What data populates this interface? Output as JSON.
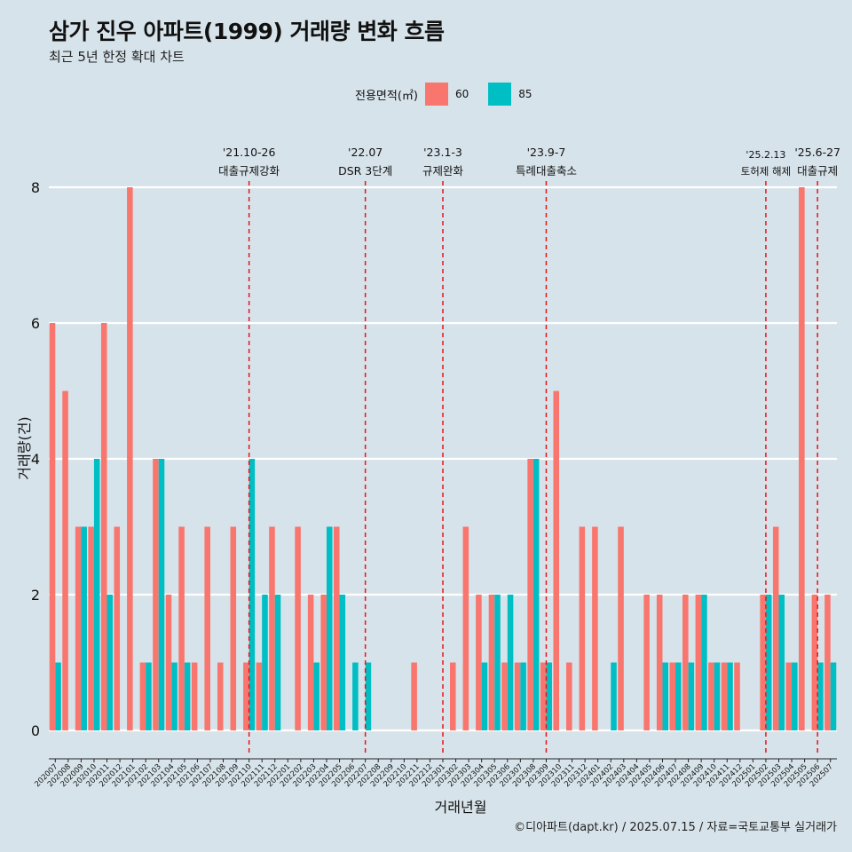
{
  "header": {
    "title": "삼가 진우 아파트(1999) 거래량 변화 흐름",
    "subtitle": "최근 5년 한정 확대 차트"
  },
  "legend": {
    "title": "전용면적(㎡)",
    "items": [
      {
        "label": "60",
        "color": "#F8766D"
      },
      {
        "label": "85",
        "color": "#00BFC4"
      }
    ]
  },
  "caption": "©디아파트(dapt.kr) / 2025.07.15 / 자료=국토교통부 실거래가",
  "chart_data": {
    "type": "bar",
    "title": "삼가 진우 아파트(1999) 거래량 변화 흐름",
    "xlabel": "거래년월",
    "ylabel": "거래량(건)",
    "ylim": [
      0,
      8
    ],
    "yticks": [
      0,
      2,
      4,
      6,
      8
    ],
    "grid": true,
    "legend_position": "top",
    "categories": [
      "202007",
      "202008",
      "202009",
      "202010",
      "202011",
      "202012",
      "202101",
      "202102",
      "202103",
      "202104",
      "202105",
      "202106",
      "202107",
      "202108",
      "202109",
      "202110",
      "202111",
      "202112",
      "202201",
      "202202",
      "202203",
      "202204",
      "202205",
      "202206",
      "202207",
      "202208",
      "202209",
      "202210",
      "202211",
      "202212",
      "202301",
      "202302",
      "202303",
      "202304",
      "202305",
      "202306",
      "202307",
      "202308",
      "202309",
      "202310",
      "202311",
      "202312",
      "202401",
      "202402",
      "202403",
      "202404",
      "202405",
      "202406",
      "202407",
      "202408",
      "202409",
      "202410",
      "202411",
      "202412",
      "202501",
      "202502",
      "202503",
      "202504",
      "202505",
      "202506",
      "202507"
    ],
    "series": [
      {
        "name": "60",
        "color": "#F8766D",
        "values": [
          6,
          5,
          3,
          3,
          6,
          3,
          8,
          1,
          4,
          2,
          3,
          1,
          3,
          1,
          3,
          1,
          1,
          3,
          0,
          3,
          2,
          2,
          3,
          0,
          0,
          0,
          0,
          0,
          1,
          0,
          0,
          1,
          3,
          2,
          2,
          1,
          1,
          4,
          1,
          5,
          1,
          3,
          3,
          0,
          3,
          0,
          2,
          2,
          1,
          2,
          2,
          1,
          1,
          1,
          0,
          2,
          3,
          1,
          8,
          2,
          2
        ]
      },
      {
        "name": "85",
        "color": "#00BFC4",
        "values": [
          1,
          0,
          3,
          4,
          2,
          0,
          0,
          1,
          4,
          1,
          1,
          0,
          0,
          0,
          0,
          4,
          2,
          2,
          0,
          0,
          1,
          3,
          2,
          1,
          1,
          0,
          0,
          0,
          0,
          0,
          0,
          0,
          0,
          1,
          2,
          2,
          1,
          4,
          1,
          0,
          0,
          0,
          0,
          1,
          0,
          0,
          0,
          1,
          1,
          1,
          2,
          1,
          1,
          0,
          0,
          2,
          2,
          1,
          0,
          1,
          1
        ]
      }
    ],
    "annotations": [
      {
        "label": "'21.10-26",
        "text": "대출규제강화",
        "at": "202110"
      },
      {
        "label": "'22.07",
        "text": "DSR 3단계",
        "at": "202207"
      },
      {
        "label": "'23.1-3",
        "text": "규제완화",
        "at": "202301"
      },
      {
        "label": "'23.9-7",
        "text": "특례대출축소",
        "at": "202309"
      },
      {
        "label": "'25.2.13",
        "text": "토허제 해제",
        "at": "202502"
      },
      {
        "label": "'25.6-27",
        "text": "대출규제",
        "at": "202506"
      }
    ]
  }
}
